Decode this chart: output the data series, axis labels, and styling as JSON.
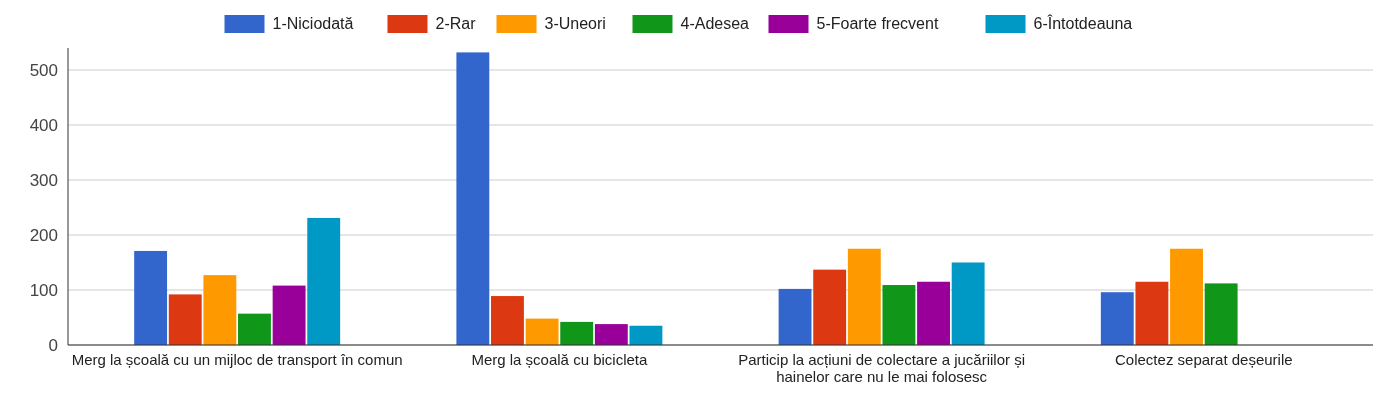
{
  "chart_data": {
    "type": "bar",
    "categories": [
      "Merg la școală cu un mijloc de transport în comun",
      "Merg la școală cu bicicleta",
      "Particip la acțiuni de colectare a jucăriilor și hainelor care nu le mai folosesc",
      "Colectez separat deșeurile"
    ],
    "series": [
      {
        "name": "1-Niciodată",
        "color": "#3366cc",
        "values": [
          171,
          532,
          102,
          96
        ]
      },
      {
        "name": "2-Rar",
        "color": "#dc3912",
        "values": [
          92,
          89,
          137,
          115
        ]
      },
      {
        "name": "3-Uneori",
        "color": "#ff9900",
        "values": [
          127,
          48,
          175,
          175
        ]
      },
      {
        "name": "4-Adesea",
        "color": "#109618",
        "values": [
          57,
          42,
          109,
          112
        ]
      },
      {
        "name": "5-Foarte frecvent",
        "color": "#990099",
        "values": [
          108,
          38,
          115,
          null
        ]
      },
      {
        "name": "6-Întotdeauna",
        "color": "#0099c6",
        "values": [
          231,
          35,
          150,
          null
        ]
      }
    ],
    "ylim": [
      0,
      540
    ],
    "yticks": [
      0,
      100,
      200,
      300,
      400,
      500
    ],
    "grid": "y",
    "legend": "top"
  }
}
